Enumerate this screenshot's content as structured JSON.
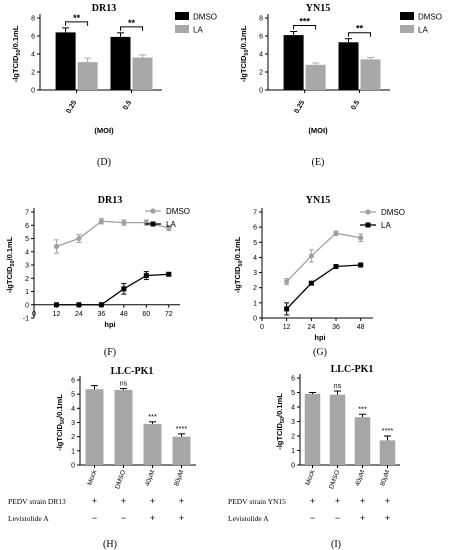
{
  "colors": {
    "dmso": "#000000",
    "la": "#a8a8a8",
    "axis": "#000000",
    "gray_line": "#a0a0a0",
    "bar_gray": "#a6a6a6"
  },
  "chart_data": [
    {
      "type": "bar",
      "id": "C",
      "title": "DR13",
      "ylabel": "-lgTCID50/0.1mL",
      "xlabel": "(MOI)",
      "panel_label": "(D)",
      "ylim": [
        0,
        8
      ],
      "yticks": [
        0,
        2,
        4,
        6,
        8
      ],
      "categories": [
        "0.25",
        "0.5"
      ],
      "legend": [
        "DMSO",
        "LA"
      ],
      "legend_position": "top-right",
      "series": [
        {
          "name": "DMSO",
          "values": [
            6.4,
            5.9
          ],
          "errors": [
            0.5,
            0.45
          ]
        },
        {
          "name": "LA",
          "values": [
            3.1,
            3.6
          ],
          "errors": [
            0.45,
            0.3
          ]
        }
      ],
      "significance": [
        "**",
        "**"
      ]
    },
    {
      "type": "bar",
      "id": "Dp",
      "title": "YN15",
      "ylabel": "-lgTCID50/0.1mL",
      "xlabel": "(MOI)",
      "panel_label": "(E)",
      "ylim": [
        0,
        8
      ],
      "yticks": [
        0,
        2,
        4,
        6,
        8
      ],
      "categories": [
        "0.25",
        "0.5"
      ],
      "legend": [
        "DMSO",
        "LA"
      ],
      "legend_position": "top-right",
      "series": [
        {
          "name": "DMSO",
          "values": [
            6.1,
            5.3
          ],
          "errors": [
            0.4,
            0.4
          ]
        },
        {
          "name": "LA",
          "values": [
            2.8,
            3.4
          ],
          "errors": [
            0.2,
            0.2
          ]
        }
      ],
      "significance": [
        "***",
        "**"
      ]
    },
    {
      "type": "line",
      "id": "F",
      "title": "DR13",
      "ylabel": "-lgTCID50/0.1mL",
      "xlabel": "hpi",
      "panel_label": "(F)",
      "ylim": [
        -1,
        7
      ],
      "yticks": [
        -1,
        0,
        1,
        2,
        3,
        4,
        5,
        6,
        7
      ],
      "xlim": [
        0,
        78
      ],
      "xticks": [
        0,
        12,
        24,
        36,
        48,
        60,
        72
      ],
      "legend": [
        "DMSO",
        "LA"
      ],
      "legend_position": "top-right",
      "series": [
        {
          "name": "DMSO",
          "x": [
            12,
            24,
            36,
            48,
            60,
            72
          ],
          "values": [
            4.4,
            5.0,
            6.3,
            6.2,
            6.2,
            5.8
          ],
          "errors": [
            0.5,
            0.3,
            0.2,
            0.2,
            0.2,
            0.2
          ]
        },
        {
          "name": "LA",
          "x": [
            12,
            24,
            36,
            48,
            60,
            72
          ],
          "values": [
            0.0,
            0.0,
            0.0,
            1.2,
            2.2,
            2.3
          ],
          "errors": [
            0,
            0,
            0,
            0.4,
            0.3,
            0.1
          ]
        }
      ]
    },
    {
      "type": "line",
      "id": "G",
      "title": "YN15",
      "ylabel": "-lgTCID50/0.1mL",
      "xlabel": "hpi",
      "panel_label": "(G)",
      "ylim": [
        0,
        7
      ],
      "yticks": [
        0,
        1,
        2,
        3,
        4,
        5,
        6,
        7
      ],
      "xlim": [
        0,
        54
      ],
      "xticks": [
        0,
        12,
        24,
        36,
        48
      ],
      "legend": [
        "DMSO",
        "LA"
      ],
      "legend_position": "top-right",
      "series": [
        {
          "name": "DMSO",
          "x": [
            12,
            24,
            36,
            48
          ],
          "values": [
            2.4,
            4.1,
            5.6,
            5.3
          ],
          "errors": [
            0.2,
            0.4,
            0.15,
            0.25
          ]
        },
        {
          "name": "LA",
          "x": [
            12,
            24,
            36,
            48
          ],
          "values": [
            0.6,
            2.3,
            3.4,
            3.5
          ],
          "errors": [
            0.4,
            0.05,
            0.05,
            0.05
          ]
        }
      ]
    },
    {
      "type": "bar",
      "id": "H",
      "title": "LLC-PK1",
      "ylabel": "-lgTCID50/0.1mL",
      "panel_label": "(H)",
      "ylim": [
        0,
        6
      ],
      "yticks": [
        0,
        1,
        2,
        3,
        4,
        5,
        6
      ],
      "categories": [
        "Mock",
        "DMSO",
        "40μM",
        "80μM"
      ],
      "series": [
        {
          "values": [
            5.35,
            5.3,
            2.9,
            2.0
          ],
          "errors": [
            0.25,
            0.1,
            0.15,
            0.2
          ]
        }
      ],
      "significance": [
        "",
        "ns",
        "***",
        "****"
      ],
      "table": [
        {
          "label": "PEDV strain DR13",
          "cells": [
            "+",
            "+",
            "+",
            "+"
          ]
        },
        {
          "label": "Levistolide A",
          "cells": [
            "−",
            "−",
            "+",
            "+"
          ]
        }
      ]
    },
    {
      "type": "bar",
      "id": "I",
      "title": "LLC-PK1",
      "ylabel": "-lgTCID50/0.1mL",
      "panel_label": "(I)",
      "ylim": [
        0,
        6
      ],
      "yticks": [
        0,
        1,
        2,
        3,
        4,
        5,
        6
      ],
      "categories": [
        "Mock",
        "DMSO",
        "40μM",
        "80μM"
      ],
      "series": [
        {
          "values": [
            4.9,
            4.85,
            3.3,
            1.7
          ],
          "errors": [
            0.1,
            0.25,
            0.2,
            0.3
          ]
        }
      ],
      "significance": [
        "",
        "ns",
        "***",
        "****"
      ],
      "table": [
        {
          "label": "PEDV strain YN15",
          "cells": [
            "+",
            "+",
            "+",
            "+"
          ]
        },
        {
          "label": "Levistolide A",
          "cells": [
            "−",
            "−",
            "+",
            "+"
          ]
        }
      ]
    }
  ]
}
